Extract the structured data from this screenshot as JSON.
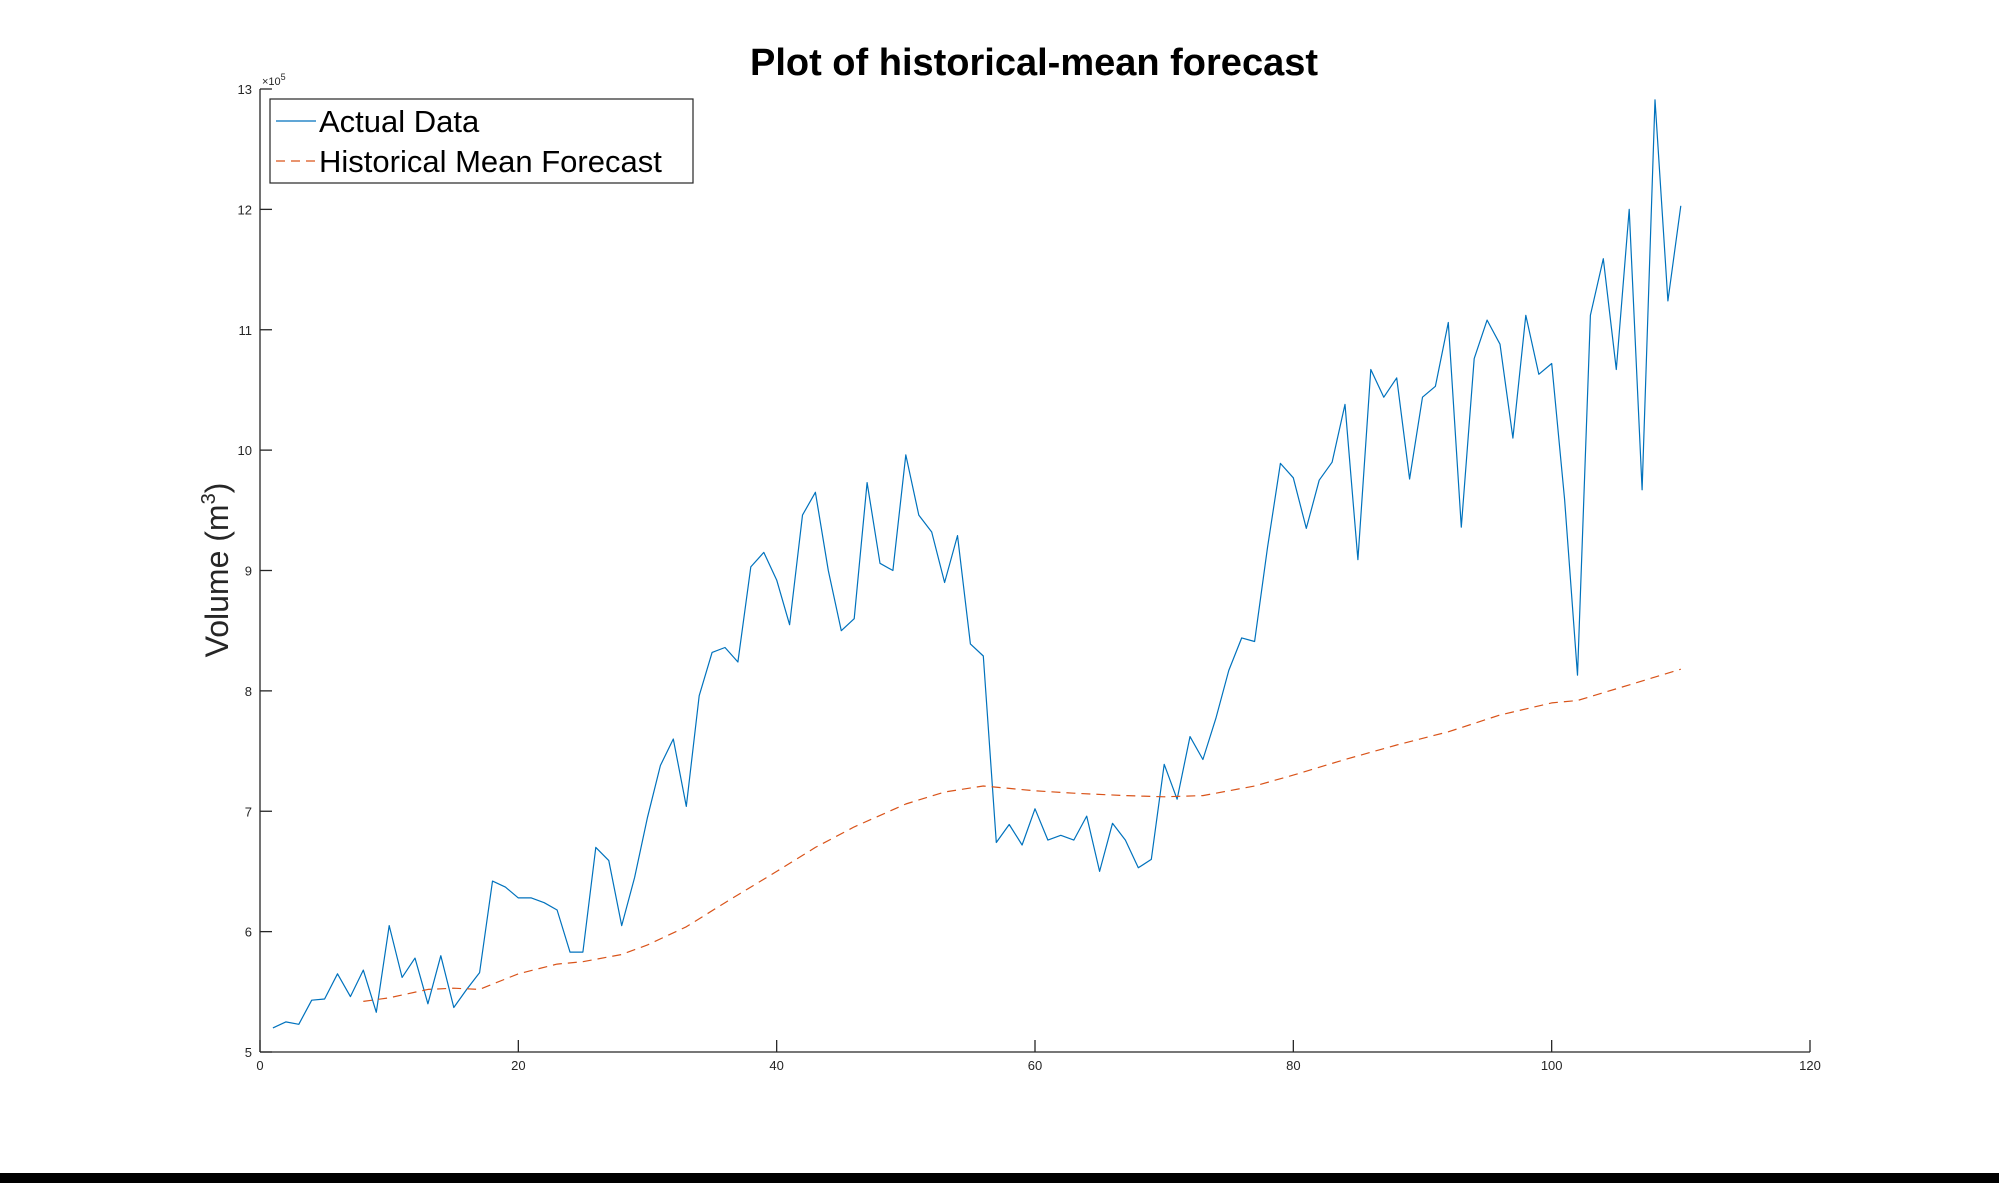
{
  "chart_data": {
    "type": "line",
    "title": "Plot of historical-mean forecast",
    "xlabel": "",
    "ylabel": "Volume (m",
    "ylabel_superscript": "3",
    "ylabel_close": ")",
    "y_exponent_base": "×10",
    "y_exponent_power": "5",
    "xlim": [
      0,
      120
    ],
    "ylim": [
      5,
      13
    ],
    "x_ticks": [
      0,
      20,
      40,
      60,
      80,
      100,
      120
    ],
    "y_ticks": [
      5,
      6,
      7,
      8,
      9,
      10,
      11,
      12,
      13
    ],
    "x_tick_labels": [
      "0",
      "20",
      "40",
      "60",
      "80",
      "100",
      "120"
    ],
    "y_tick_labels": [
      "5",
      "6",
      "7",
      "8",
      "9",
      "10",
      "11",
      "12",
      "13"
    ],
    "grid": false,
    "legend_position": "top-left",
    "series": [
      {
        "name": "Actual Data",
        "color": "#0072BD",
        "style": "solid",
        "x": [
          1,
          2,
          3,
          4,
          5,
          6,
          7,
          8,
          9,
          10,
          11,
          12,
          13,
          14,
          15,
          16,
          17,
          18,
          19,
          20,
          21,
          22,
          23,
          24,
          25,
          26,
          27,
          28,
          29,
          30,
          31,
          32,
          33,
          34,
          35,
          36,
          37,
          38,
          39,
          40,
          41,
          42,
          43,
          44,
          45,
          46,
          47,
          48,
          49,
          50,
          51,
          52,
          53,
          54,
          55,
          56,
          57,
          58,
          59,
          60,
          61,
          62,
          63,
          64,
          65,
          66,
          67,
          68,
          69,
          70,
          71,
          72,
          73,
          74,
          75,
          76,
          77,
          78,
          79,
          80,
          81,
          82,
          83,
          84,
          85,
          86,
          87,
          88,
          89,
          90,
          91,
          92,
          93,
          94,
          95,
          96,
          97,
          98,
          99,
          100,
          101,
          102,
          103,
          104,
          105,
          106,
          107,
          108,
          109,
          110
        ],
        "values": [
          5.2,
          5.25,
          5.23,
          5.43,
          5.44,
          5.65,
          5.46,
          5.68,
          5.33,
          6.05,
          5.62,
          5.78,
          5.4,
          5.8,
          5.37,
          5.52,
          5.66,
          6.42,
          6.37,
          6.28,
          6.28,
          6.24,
          6.18,
          5.83,
          5.83,
          6.7,
          6.59,
          6.05,
          6.45,
          6.95,
          7.38,
          7.6,
          7.04,
          7.96,
          8.32,
          8.36,
          8.24,
          9.03,
          9.15,
          8.92,
          8.55,
          9.46,
          9.65,
          9.0,
          8.5,
          8.6,
          9.73,
          9.06,
          9.0,
          9.96,
          9.46,
          9.32,
          8.9,
          9.29,
          8.39,
          8.29,
          6.74,
          6.89,
          6.72,
          7.02,
          6.76,
          6.8,
          6.76,
          6.96,
          6.5,
          6.9,
          6.76,
          6.53,
          6.6,
          7.39,
          7.1,
          7.62,
          7.43,
          7.77,
          8.17,
          8.44,
          8.41,
          9.19,
          9.89,
          9.77,
          9.35,
          9.75,
          9.9,
          10.38,
          9.09,
          10.67,
          10.44,
          10.6,
          9.76,
          10.44,
          10.53,
          11.06,
          9.36,
          10.76,
          11.08,
          10.88,
          10.1,
          11.12,
          10.63,
          10.72,
          9.59,
          8.13,
          11.12,
          11.59,
          10.67,
          12.0,
          9.67,
          12.91,
          11.24,
          12.03
        ]
      },
      {
        "name": "Historical Mean Forecast",
        "color": "#D95319",
        "style": "dashed",
        "x": [
          8,
          10,
          13,
          15,
          17,
          20,
          23,
          25,
          28,
          30,
          33,
          36,
          40,
          43,
          46,
          50,
          53,
          56,
          58,
          60,
          63,
          67,
          70,
          73,
          77,
          80,
          84,
          88,
          92,
          96,
          100,
          102,
          106,
          110
        ],
        "values": [
          5.42,
          5.45,
          5.52,
          5.53,
          5.52,
          5.65,
          5.73,
          5.75,
          5.81,
          5.89,
          6.04,
          6.24,
          6.5,
          6.7,
          6.87,
          7.06,
          7.16,
          7.21,
          7.19,
          7.17,
          7.15,
          7.13,
          7.12,
          7.13,
          7.21,
          7.3,
          7.43,
          7.55,
          7.66,
          7.8,
          7.9,
          7.92,
          8.05,
          8.18
        ]
      }
    ]
  }
}
